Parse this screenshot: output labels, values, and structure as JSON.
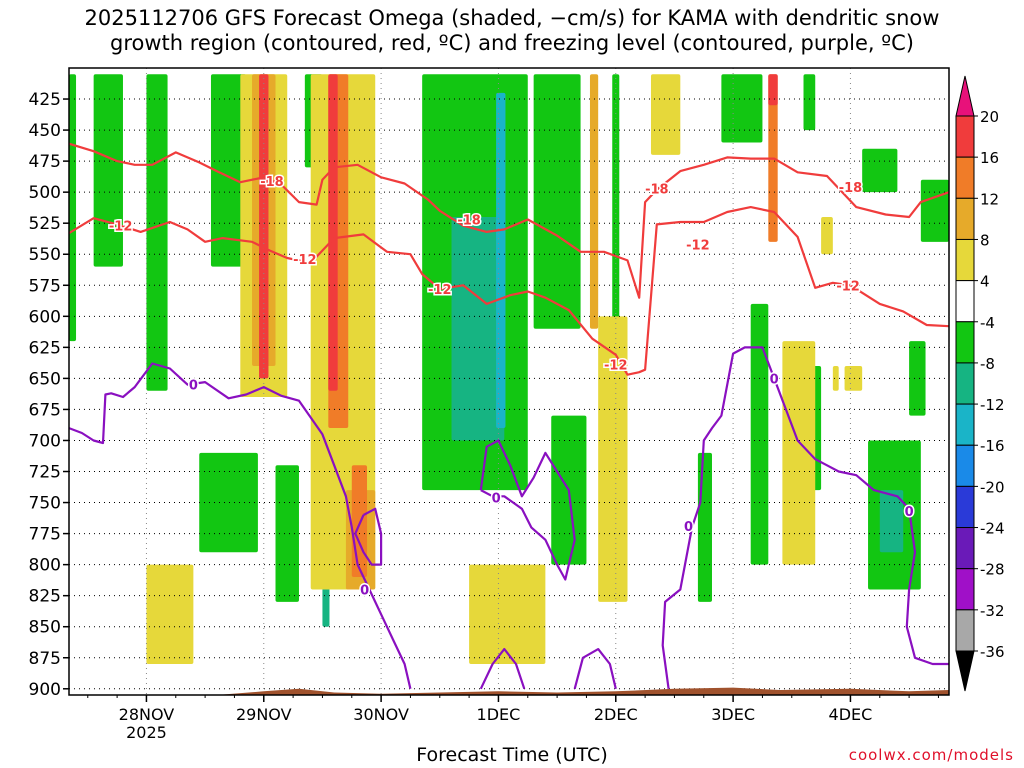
{
  "title_line1": "2025112706 GFS Forecast Omega (shaded, −cm/s) for KAMA with dendritic snow",
  "title_line2": "growth region (contoured, red, ºC) and freezing level (contoured, purple, ºC)",
  "xlabel": "Forecast Time (UTC)",
  "credit": "coolwx.com/models",
  "chart_data": {
    "type": "heatmap",
    "title": "2025112706 GFS Forecast Omega (shaded, −cm/s) for KAMA with dendritic snow growth region (contoured, red, ºC) and freezing level (contoured, purple, ºC)",
    "xlabel": "Forecast Time (UTC)",
    "ylabel": "",
    "x_range_days": [
      -0.66,
      6.84
    ],
    "x_ticks": [
      {
        "value": 0,
        "label": "28NOV",
        "sublabel": "2025"
      },
      {
        "value": 1,
        "label": "29NOV",
        "sublabel": ""
      },
      {
        "value": 2,
        "label": "30NOV",
        "sublabel": ""
      },
      {
        "value": 3,
        "label": "1DEC",
        "sublabel": ""
      },
      {
        "value": 4,
        "label": "2DEC",
        "sublabel": ""
      },
      {
        "value": 5,
        "label": "3DEC",
        "sublabel": ""
      },
      {
        "value": 6,
        "label": "4DEC",
        "sublabel": ""
      }
    ],
    "y_range_hpa": [
      400,
      905
    ],
    "y_ticks": [
      425,
      450,
      475,
      500,
      525,
      550,
      575,
      600,
      625,
      650,
      675,
      700,
      725,
      750,
      775,
      800,
      825,
      850,
      875,
      900
    ],
    "colorbar": {
      "labels": [
        20,
        16,
        12,
        8,
        4,
        -4,
        -8,
        -12,
        -16,
        -20,
        -24,
        -28,
        -32,
        -36
      ],
      "colors": [
        "#e8117a",
        "#f03c3c",
        "#f07c28",
        "#e6aa2a",
        "#e6d83a",
        "#ffffff",
        "#12c612",
        "#16b482",
        "#1ab4c8",
        "#1a8ae8",
        "#2a3ad8",
        "#6a1ab8",
        "#a010c8",
        "#a8a8a8",
        "#000000"
      ]
    },
    "omega_areas": [
      {
        "level": "-8",
        "t0": -0.66,
        "t1": -0.6,
        "p0": 405,
        "p1": 620
      },
      {
        "level": "-8",
        "t0": -0.45,
        "t1": -0.2,
        "p0": 405,
        "p1": 560
      },
      {
        "level": "-8",
        "t0": 0.0,
        "t1": 0.18,
        "p0": 405,
        "p1": 660
      },
      {
        "level": "-8",
        "t0": 0.55,
        "t1": 0.85,
        "p0": 405,
        "p1": 560
      },
      {
        "level": "-8",
        "t0": 1.35,
        "t1": 1.5,
        "p0": 405,
        "p1": 480
      },
      {
        "level": "-8",
        "t0": 2.35,
        "t1": 3.25,
        "p0": 405,
        "p1": 740
      },
      {
        "level": "-12",
        "t0": 2.6,
        "t1": 3.05,
        "p0": 520,
        "p1": 700
      },
      {
        "level": "-16",
        "t0": 2.98,
        "t1": 3.06,
        "p0": 420,
        "p1": 690
      },
      {
        "level": "-8",
        "t0": 3.3,
        "t1": 3.7,
        "p0": 405,
        "p1": 610
      },
      {
        "level": "-8",
        "t0": 3.45,
        "t1": 3.75,
        "p0": 680,
        "p1": 800
      },
      {
        "level": "-8",
        "t0": 0.45,
        "t1": 0.95,
        "p0": 710,
        "p1": 790
      },
      {
        "level": "-8",
        "t0": 1.1,
        "t1": 1.3,
        "p0": 720,
        "p1": 830
      },
      {
        "level": "-12",
        "t0": 1.5,
        "t1": 1.56,
        "p0": 740,
        "p1": 850
      },
      {
        "level": "-8",
        "t0": 3.97,
        "t1": 4.03,
        "p0": 405,
        "p1": 660
      },
      {
        "level": "-8",
        "t0": 4.9,
        "t1": 5.25,
        "p0": 405,
        "p1": 460
      },
      {
        "level": "-8",
        "t0": 5.6,
        "t1": 5.7,
        "p0": 405,
        "p1": 450
      },
      {
        "level": "-8",
        "t0": 4.7,
        "t1": 4.82,
        "p0": 710,
        "p1": 830
      },
      {
        "level": "-8",
        "t0": 5.15,
        "t1": 5.3,
        "p0": 590,
        "p1": 800
      },
      {
        "level": "-8",
        "t0": 5.45,
        "t1": 5.75,
        "p0": 640,
        "p1": 740
      },
      {
        "level": "-8",
        "t0": 6.1,
        "t1": 6.4,
        "p0": 465,
        "p1": 500
      },
      {
        "level": "-8",
        "t0": 6.15,
        "t1": 6.6,
        "p0": 700,
        "p1": 820
      },
      {
        "level": "-12",
        "t0": 6.25,
        "t1": 6.45,
        "p0": 740,
        "p1": 790
      },
      {
        "level": "-8",
        "t0": 6.5,
        "t1": 6.64,
        "p0": 620,
        "p1": 680
      },
      {
        "level": "-8",
        "t0": 6.6,
        "t1": 6.84,
        "p0": 490,
        "p1": 540
      },
      {
        "level": "4",
        "t0": 0.0,
        "t1": 0.4,
        "p0": 800,
        "p1": 880
      },
      {
        "level": "4",
        "t0": 0.8,
        "t1": 1.2,
        "p0": 405,
        "p1": 665
      },
      {
        "level": "8",
        "t0": 0.9,
        "t1": 1.1,
        "p0": 405,
        "p1": 640
      },
      {
        "level": "16",
        "t0": 0.96,
        "t1": 1.04,
        "p0": 405,
        "p1": 650
      },
      {
        "level": "4",
        "t0": 1.4,
        "t1": 1.95,
        "p0": 405,
        "p1": 820
      },
      {
        "level": "12",
        "t0": 1.55,
        "t1": 1.72,
        "p0": 405,
        "p1": 690
      },
      {
        "level": "16",
        "t0": 1.55,
        "t1": 1.63,
        "p0": 405,
        "p1": 660
      },
      {
        "level": "8",
        "t0": 1.7,
        "t1": 1.95,
        "p0": 740,
        "p1": 820
      },
      {
        "level": "12",
        "t0": 1.75,
        "t1": 1.88,
        "p0": 720,
        "p1": 810
      },
      {
        "level": "4",
        "t0": 2.75,
        "t1": 3.4,
        "p0": 800,
        "p1": 880
      },
      {
        "level": "4",
        "t0": 3.85,
        "t1": 4.1,
        "p0": 600,
        "p1": 830
      },
      {
        "level": "8",
        "t0": 3.78,
        "t1": 3.85,
        "p0": 405,
        "p1": 610
      },
      {
        "level": "4",
        "t0": 4.3,
        "t1": 4.55,
        "p0": 405,
        "p1": 470
      },
      {
        "level": "12",
        "t0": 5.3,
        "t1": 5.38,
        "p0": 405,
        "p1": 540
      },
      {
        "level": "16",
        "t0": 5.3,
        "t1": 5.38,
        "p0": 405,
        "p1": 430
      },
      {
        "level": "4",
        "t0": 5.42,
        "t1": 5.7,
        "p0": 620,
        "p1": 800
      },
      {
        "level": "4",
        "t0": 5.75,
        "t1": 5.85,
        "p0": 520,
        "p1": 550
      },
      {
        "level": "4",
        "t0": 5.85,
        "t1": 5.9,
        "p0": 640,
        "p1": 660
      },
      {
        "level": "4",
        "t0": 5.95,
        "t1": 6.1,
        "p0": 640,
        "p1": 660
      }
    ],
    "terrain_color": "#a0522d",
    "series": [
      {
        "name": "-12",
        "color": "#f03c3c",
        "kind": "dendritic snow growth region",
        "points": [
          [
            -0.66,
            533
          ],
          [
            -0.45,
            521
          ],
          [
            -0.25,
            526
          ],
          [
            -0.05,
            532
          ],
          [
            0.2,
            524
          ],
          [
            0.35,
            530
          ],
          [
            0.5,
            540
          ],
          [
            0.65,
            537
          ],
          [
            0.9,
            540
          ],
          [
            1.05,
            547
          ],
          [
            1.2,
            553
          ],
          [
            1.4,
            557
          ],
          [
            1.6,
            537
          ],
          [
            1.85,
            534
          ],
          [
            2.05,
            548
          ],
          [
            2.25,
            550
          ],
          [
            2.35,
            566
          ],
          [
            2.5,
            578
          ],
          [
            2.7,
            575
          ],
          [
            2.9,
            590
          ],
          [
            3.1,
            583
          ],
          [
            3.25,
            580
          ],
          [
            3.4,
            585
          ],
          [
            3.6,
            595
          ],
          [
            3.8,
            618
          ],
          [
            4.0,
            631
          ],
          [
            4.1,
            647
          ],
          [
            4.2,
            645
          ],
          [
            4.25,
            643
          ],
          [
            4.35,
            526
          ],
          [
            4.55,
            524
          ],
          [
            4.75,
            524
          ],
          [
            4.95,
            516
          ],
          [
            5.15,
            512
          ],
          [
            5.35,
            516
          ],
          [
            5.55,
            536
          ],
          [
            5.7,
            577
          ],
          [
            5.85,
            573
          ],
          [
            6.0,
            575
          ],
          [
            6.25,
            590
          ],
          [
            6.45,
            596
          ],
          [
            6.65,
            607
          ],
          [
            6.84,
            608
          ]
        ]
      },
      {
        "name": "-18",
        "color": "#f03c3c",
        "kind": "dendritic snow growth region",
        "points": [
          [
            -0.66,
            461
          ],
          [
            -0.45,
            467
          ],
          [
            -0.25,
            475
          ],
          [
            -0.1,
            478
          ],
          [
            0.05,
            478
          ],
          [
            0.25,
            468
          ],
          [
            0.45,
            476
          ],
          [
            0.6,
            483
          ],
          [
            0.8,
            492
          ],
          [
            1.0,
            488
          ],
          [
            1.15,
            494
          ],
          [
            1.3,
            508
          ],
          [
            1.45,
            510
          ],
          [
            1.5,
            490
          ],
          [
            1.6,
            480
          ],
          [
            1.8,
            478
          ],
          [
            2.0,
            488
          ],
          [
            2.2,
            493
          ],
          [
            2.4,
            506
          ],
          [
            2.5,
            515
          ],
          [
            2.7,
            527
          ],
          [
            2.9,
            532
          ],
          [
            3.05,
            530
          ],
          [
            3.25,
            522
          ],
          [
            3.5,
            535
          ],
          [
            3.7,
            548
          ],
          [
            3.9,
            548
          ],
          [
            4.1,
            555
          ],
          [
            4.2,
            585
          ],
          [
            4.25,
            508
          ],
          [
            4.35,
            498
          ],
          [
            4.55,
            483
          ],
          [
            4.75,
            478
          ],
          [
            4.95,
            472
          ],
          [
            5.15,
            473
          ],
          [
            5.35,
            473
          ],
          [
            5.55,
            484
          ],
          [
            5.8,
            487
          ],
          [
            6.05,
            512
          ],
          [
            6.3,
            518
          ],
          [
            6.5,
            520
          ],
          [
            6.6,
            508
          ],
          [
            6.84,
            500
          ]
        ]
      },
      {
        "name": "0",
        "color": "#8a10c0",
        "kind": "freezing level",
        "points": [
          [
            -0.66,
            690
          ],
          [
            -0.55,
            694
          ],
          [
            -0.45,
            700
          ],
          [
            -0.37,
            702
          ],
          [
            -0.35,
            663
          ],
          [
            -0.3,
            662
          ],
          [
            -0.2,
            665
          ],
          [
            -0.1,
            657
          ],
          [
            0.05,
            638
          ],
          [
            0.2,
            642
          ],
          [
            0.35,
            655
          ],
          [
            0.5,
            653
          ],
          [
            0.7,
            666
          ],
          [
            0.85,
            663
          ],
          [
            1.0,
            657
          ],
          [
            1.15,
            664
          ],
          [
            1.3,
            668
          ],
          [
            1.5,
            695
          ],
          [
            1.6,
            720
          ],
          [
            1.7,
            745
          ],
          [
            1.75,
            770
          ],
          [
            1.8,
            800
          ],
          [
            1.9,
            820
          ],
          [
            2.0,
            840
          ],
          [
            2.1,
            860
          ],
          [
            2.2,
            880
          ],
          [
            2.25,
            900
          ]
        ]
      },
      {
        "name": "0",
        "color": "#8a10c0",
        "kind": "freezing level",
        "points": [
          [
            1.85,
            760
          ],
          [
            1.95,
            755
          ],
          [
            2.0,
            775
          ],
          [
            2.0,
            800
          ],
          [
            1.92,
            800
          ],
          [
            1.85,
            790
          ],
          [
            1.78,
            775
          ],
          [
            1.85,
            760
          ]
        ]
      },
      {
        "name": "0",
        "color": "#8a10c0",
        "kind": "freezing level",
        "points": [
          [
            2.85,
            900
          ],
          [
            2.95,
            880
          ],
          [
            3.05,
            868
          ],
          [
            3.15,
            880
          ],
          [
            3.22,
            900
          ]
        ]
      },
      {
        "name": "0",
        "color": "#8a10c0",
        "kind": "freezing level",
        "points": [
          [
            2.85,
            740
          ],
          [
            2.9,
            705
          ],
          [
            3.0,
            700
          ],
          [
            3.1,
            720
          ],
          [
            3.2,
            745
          ],
          [
            3.3,
            730
          ],
          [
            3.4,
            710
          ],
          [
            3.5,
            725
          ],
          [
            3.6,
            740
          ],
          [
            3.65,
            780
          ],
          [
            3.57,
            812
          ],
          [
            3.5,
            800
          ],
          [
            3.4,
            780
          ],
          [
            3.28,
            770
          ],
          [
            3.2,
            755
          ],
          [
            3.05,
            745
          ],
          [
            2.95,
            745
          ],
          [
            2.85,
            740
          ]
        ]
      },
      {
        "name": "0",
        "color": "#8a10c0",
        "kind": "freezing level",
        "points": [
          [
            3.65,
            900
          ],
          [
            3.72,
            875
          ],
          [
            3.85,
            868
          ],
          [
            3.95,
            880
          ],
          [
            4.0,
            900
          ]
        ]
      },
      {
        "name": "0",
        "color": "#8a10c0",
        "kind": "freezing level",
        "points": [
          [
            4.45,
            900
          ],
          [
            4.4,
            865
          ],
          [
            4.42,
            830
          ],
          [
            4.55,
            820
          ],
          [
            4.65,
            770
          ],
          [
            4.72,
            750
          ],
          [
            4.75,
            700
          ],
          [
            4.82,
            690
          ],
          [
            4.9,
            680
          ],
          [
            5.0,
            630
          ],
          [
            5.1,
            625
          ],
          [
            5.25,
            625
          ],
          [
            5.35,
            650
          ],
          [
            5.45,
            675
          ],
          [
            5.55,
            700
          ],
          [
            5.7,
            715
          ],
          [
            5.8,
            720
          ],
          [
            5.9,
            725
          ],
          [
            6.05,
            728
          ],
          [
            6.2,
            740
          ],
          [
            6.4,
            745
          ],
          [
            6.5,
            755
          ],
          [
            6.55,
            790
          ],
          [
            6.5,
            820
          ],
          [
            6.48,
            850
          ],
          [
            6.55,
            875
          ],
          [
            6.7,
            880
          ],
          [
            6.84,
            880
          ]
        ]
      }
    ],
    "contour_labels": [
      {
        "text": "-12",
        "t": -0.22,
        "p": 527
      },
      {
        "text": "-12",
        "t": 1.35,
        "p": 554
      },
      {
        "text": "-12",
        "t": 2.5,
        "p": 578
      },
      {
        "text": "-12",
        "t": 4.0,
        "p": 639
      },
      {
        "text": "-12",
        "t": 4.7,
        "p": 542
      },
      {
        "text": "-12",
        "t": 5.98,
        "p": 575
      },
      {
        "text": "-18",
        "t": 1.07,
        "p": 491
      },
      {
        "text": "-18",
        "t": 2.75,
        "p": 522
      },
      {
        "text": "-18",
        "t": 4.35,
        "p": 497
      },
      {
        "text": "-18",
        "t": 6.0,
        "p": 496
      },
      {
        "text": "0",
        "t": 0.4,
        "p": 655
      },
      {
        "text": "0",
        "t": 1.86,
        "p": 820
      },
      {
        "text": "0",
        "t": 2.98,
        "p": 746
      },
      {
        "text": "0",
        "t": 4.62,
        "p": 769
      },
      {
        "text": "0",
        "t": 5.35,
        "p": 650
      },
      {
        "text": "0",
        "t": 6.5,
        "p": 757
      }
    ]
  }
}
